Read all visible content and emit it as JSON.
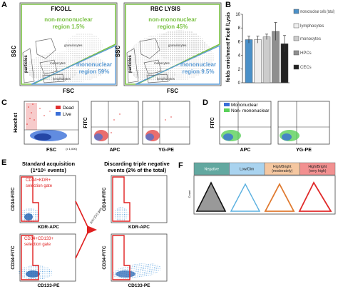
{
  "panelA": {
    "letter": "A",
    "left": {
      "title": "FICOLL",
      "nonmono": "non-mononuclear",
      "nonmono_pct": "region 1.5%",
      "mono": "mononuclear",
      "mono_pct": "region 59%",
      "labels": {
        "granulocytes": "granulocytes",
        "monocytes": "monocytes",
        "lymphocytes": "lymphocytes",
        "particles": "particles"
      }
    },
    "right": {
      "title": "RBC LYSIS",
      "nonmono": "non-mononuclear",
      "nonmono_pct": "region 45%",
      "mono": "mononuclear",
      "mono_pct": "region 9.5%",
      "labels": {
        "granulocytes": "granulocytes",
        "monocytes": "monocytes",
        "lymphocytes": "lymphocytes",
        "particles": "particles"
      }
    },
    "xlabel": "FSC",
    "ylabel": "SSC",
    "colors": {
      "green": "#7ac143",
      "blue": "#5b9bd5",
      "cloud": "#555555"
    }
  },
  "panelB": {
    "letter": "B",
    "chart_data": {
      "type": "bar",
      "ylabel": "folds enrichment Ficoll /Lysis",
      "ylim": [
        0,
        10
      ],
      "yticks": [
        "0",
        "2",
        "4",
        "6",
        "8",
        "10"
      ],
      "categories": [
        "monocnuclear cells (total)",
        "lymphocytes",
        "monocytes",
        "HPCs",
        "CECs"
      ],
      "values": [
        6.3,
        6.3,
        6.7,
        7.5,
        5.7
      ],
      "errors": [
        0.5,
        0.5,
        0.4,
        1.3,
        1.2
      ],
      "legend": [
        {
          "label": "monocnuclear cells (total)",
          "color": "#4a90c8"
        },
        {
          "label": "lymphocytes",
          "color": "#eeeeee"
        },
        {
          "label": "monocytes",
          "color": "#cccccc"
        },
        {
          "label": "HPCs",
          "color": "#8f8f8f"
        },
        {
          "label": "CECs",
          "color": "#222222"
        }
      ]
    }
  },
  "panelC": {
    "letter": "C",
    "legend": [
      {
        "label": "Dead",
        "color": "#e03030"
      },
      {
        "label": "Live",
        "color": "#3a6fd8"
      }
    ],
    "plot1": {
      "ylabel": "Hoechst",
      "xlabel": "FSC",
      "xmax": "(x 1,000)"
    },
    "plot2": {
      "ylabel": "FITC",
      "xlabel": "APC"
    },
    "plot3": {
      "xlabel": "YG-PE"
    }
  },
  "panelD": {
    "letter": "D",
    "legend": [
      {
        "label": "Mononuclear",
        "color": "#3a6fd8"
      },
      {
        "label": "Non- mononuclear",
        "color": "#5ad05a"
      }
    ],
    "plot1": {
      "ylabel": "FITC",
      "xlabel": "APC"
    },
    "plot2": {
      "xlabel": "YG-PE"
    }
  },
  "panelE": {
    "letter": "E",
    "left_title": "Standard acquisition",
    "left_subtitle": "(1*10⁶ events)",
    "right_title": "Discarding triple negative",
    "right_subtitle": "events (2% of the total)",
    "gate1": "CD34+KDR+",
    "gate1b": "selection gate",
    "gate2": "CD34+CD133+",
    "gate2b": "selection gate",
    "join": "Join [Or] gate",
    "ylabel": "CD34-FITC",
    "xlabel_top": "KDR-APC",
    "xlabel_bottom": "CD133-PE",
    "gate_color": "#e02020"
  },
  "panelF": {
    "letter": "F",
    "headers": [
      {
        "label": "Negative",
        "bg": "#62a8a0"
      },
      {
        "label": "Low/Dim",
        "bg": "#a9d3ef"
      },
      {
        "label": "High/Bright (moderately)",
        "bg": "#f5c7a0"
      },
      {
        "label": "High/Bright (very high)",
        "bg": "#f29090"
      }
    ],
    "ylabel": "Count"
  }
}
